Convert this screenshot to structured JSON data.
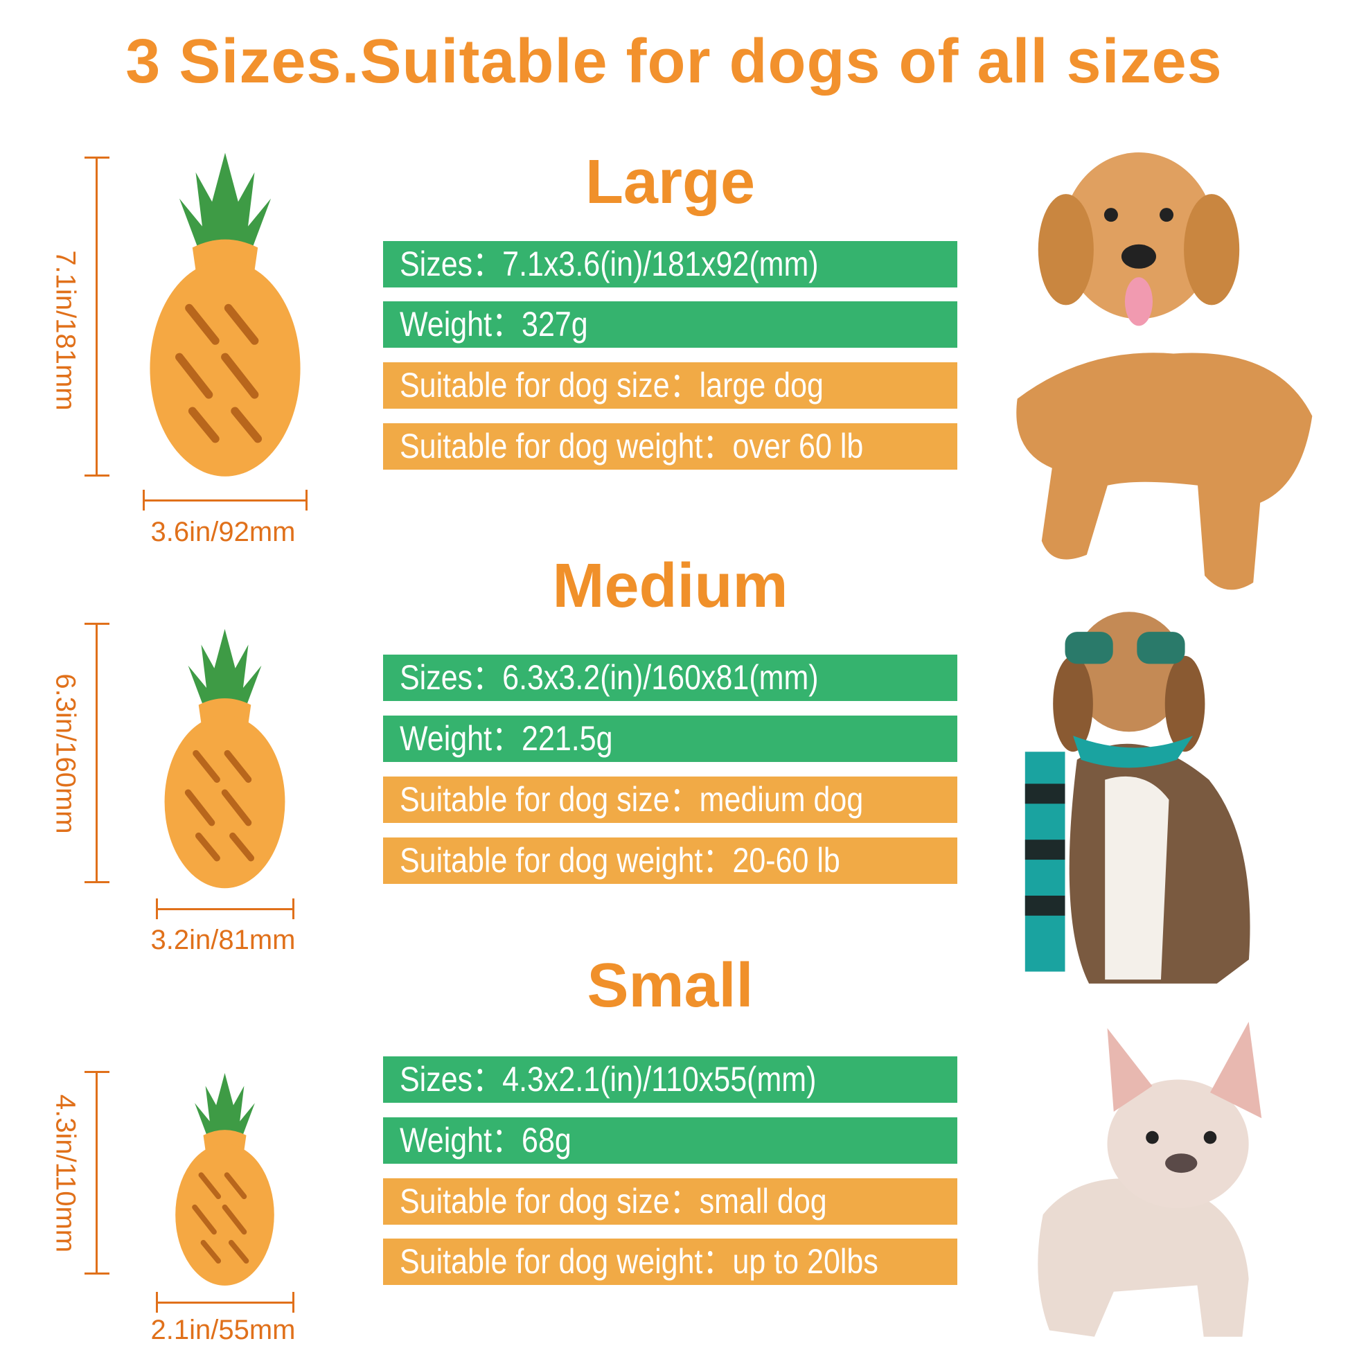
{
  "title": "3 Sizes.Suitable for dogs of all sizes",
  "colors": {
    "title": "#f2912d",
    "green_bar": "#35b36e",
    "orange_bar": "#f1aa46",
    "dimension": "#e0701a"
  },
  "sizes": [
    {
      "heading": "Large",
      "rows": [
        "Sizes：7.1x3.6(in)/181x92(mm)",
        "Weight：327g",
        "Suitable for dog size：large dog",
        "Suitable for dog weight：over 60 lb"
      ],
      "height_label": "7.1in/181mm",
      "width_label": "3.6in/92mm",
      "dog": "golden-retriever"
    },
    {
      "heading": "Medium",
      "rows": [
        "Sizes：6.3x3.2(in)/160x81(mm)",
        "Weight：221.5g",
        "Suitable for dog size：medium dog",
        "Suitable for dog weight：20-60 lb"
      ],
      "height_label": "6.3in/160mm",
      "width_label": "3.2in/81mm",
      "dog": "beagle-with-sunglasses-and-scarf"
    },
    {
      "heading": "Small",
      "rows": [
        "Sizes：4.3x2.1(in)/110x55(mm)",
        "Weight：68g",
        "Suitable for dog size：small dog",
        "Suitable for dog weight：up to 20lbs"
      ],
      "height_label": "4.3in/110mm",
      "width_label": "2.1in/55mm",
      "dog": "french-bulldog"
    }
  ]
}
